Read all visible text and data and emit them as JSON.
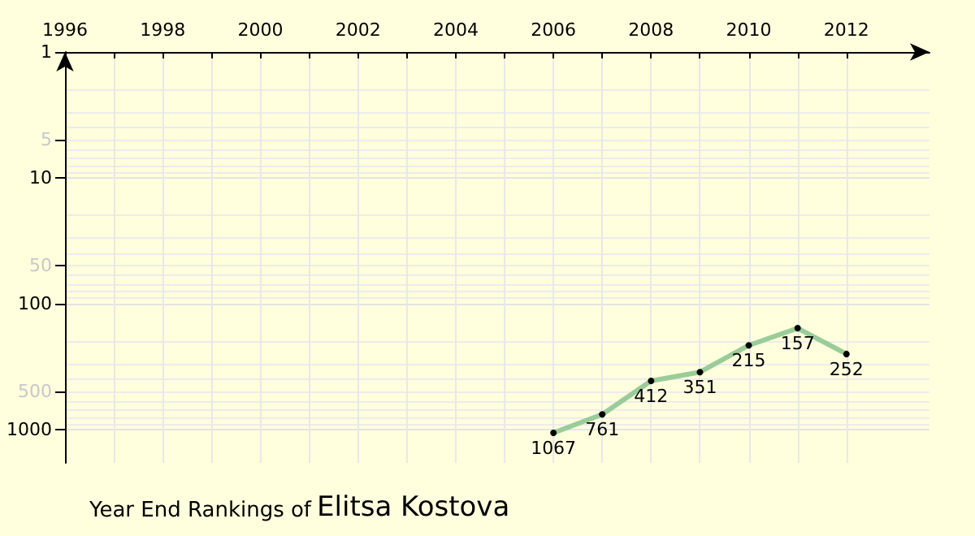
{
  "chart_data": {
    "type": "line",
    "title": "Year End Rankings of",
    "subtitle": "Elitsa Kostova",
    "x": [
      2006,
      2007,
      2008,
      2009,
      2010,
      2011,
      2012
    ],
    "series": [
      {
        "color": "#99cc99",
        "values": [
          1067,
          761,
          412,
          351,
          215,
          157,
          252
        ]
      }
    ],
    "data_labels": true,
    "marker": "circle",
    "log": true,
    "grid": true,
    "xlim": [
      1996,
      2013.7
    ],
    "xticks": [
      1996,
      {
        "value": 1997,
        "label": null
      },
      1998,
      {
        "value": 1999,
        "label": null
      },
      2000,
      {
        "value": 2001,
        "label": null
      },
      2002,
      {
        "value": 2003,
        "label": null
      },
      2004,
      {
        "value": 2005,
        "label": null
      },
      2006,
      {
        "value": 2007,
        "label": null
      },
      2008,
      {
        "value": 2009,
        "label": null
      },
      2010,
      {
        "value": 2011,
        "label": null
      },
      2012
    ],
    "ylim": [
      1850,
      1
    ],
    "yticks": [
      1,
      5,
      10,
      50,
      100,
      500,
      1000
    ]
  }
}
